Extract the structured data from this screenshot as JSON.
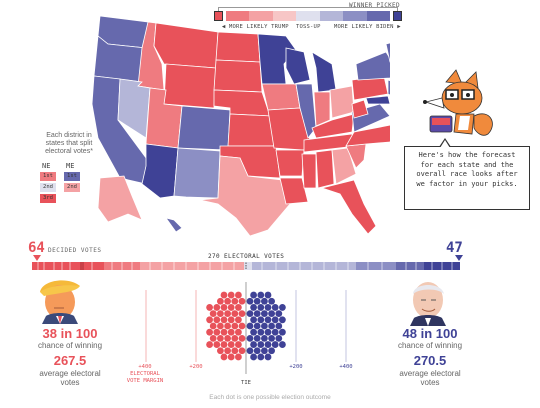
{
  "legend": {
    "winner_picked": "WINNER PICKED",
    "more_trump": "◀ MORE LIKELY TRUMP",
    "toss_up": "TOSS-UP",
    "more_biden": "MORE LIKELY BIDEN ▶",
    "colors": [
      "#e8525a",
      "#ef7b80",
      "#f4a2a4",
      "#f7c6c6",
      "#dfe0ee",
      "#b4b6d8",
      "#8c8fc4",
      "#6669ad",
      "#3f4296"
    ]
  },
  "district": {
    "caption": "Each district in states that split electoral votes*",
    "ne_label": "NE",
    "me_label": "ME",
    "ne_cells": [
      "1st",
      "2nd",
      "3rd"
    ],
    "me_cells": [
      "1st",
      "2nd"
    ]
  },
  "bubble": {
    "text": "Here's how the forecast for each state and the overall race looks after we factor in your picks."
  },
  "electoral": {
    "trump_decided": "64",
    "decided_label": "DECIDED VOTES",
    "center_label": "270 ELECTORAL VOTES",
    "biden_decided": "47"
  },
  "trump": {
    "chance": "38 in 100",
    "chance_label": "chance of winning",
    "avg_votes": "267.5",
    "avg_label": "average electoral votes",
    "color": "#e8525a"
  },
  "biden": {
    "chance": "48 in 100",
    "chance_label": "chance of winning",
    "avg_votes": "270.5",
    "avg_label": "average electoral votes",
    "color": "#3f4296"
  },
  "axis": {
    "l400": "+400",
    "l200": "+200",
    "margin_label": "ELECTORAL VOTE MARGIN",
    "r200": "+200",
    "r400": "+400",
    "tie": "TIE"
  },
  "footer": "Each dot is one possible election outcome"
}
